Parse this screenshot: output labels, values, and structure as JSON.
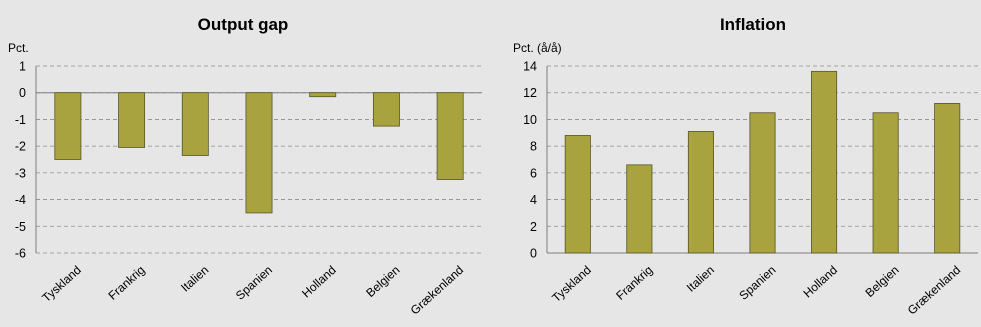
{
  "chart_data": [
    {
      "type": "bar",
      "title": "Output gap",
      "unit_label": "Pct.",
      "categories": [
        "Tyskland",
        "Frankrig",
        "Italien",
        "Spanien",
        "Holland",
        "Belgien",
        "Grækenland"
      ],
      "values": [
        -2.5,
        -2.05,
        -2.35,
        -4.5,
        -0.15,
        -1.25,
        -3.25
      ],
      "ylim": [
        -6,
        1
      ],
      "yticks": [
        "1",
        "0",
        "-1",
        "-2",
        "-3",
        "-4",
        "-5",
        "-6"
      ],
      "grid": true,
      "bar_color": "#a8a33e"
    },
    {
      "type": "bar",
      "title": "Inflation",
      "unit_label": "Pct. (å/å)",
      "categories": [
        "Tyskland",
        "Frankrig",
        "Italien",
        "Spanien",
        "Holland",
        "Belgien",
        "Grækenland"
      ],
      "values": [
        8.8,
        6.6,
        9.1,
        10.5,
        13.6,
        10.5,
        11.2
      ],
      "ylim": [
        0,
        14
      ],
      "yticks": [
        "14",
        "12",
        "10",
        "8",
        "6",
        "4",
        "2",
        "0"
      ],
      "grid": true,
      "bar_color": "#a8a33e"
    }
  ]
}
